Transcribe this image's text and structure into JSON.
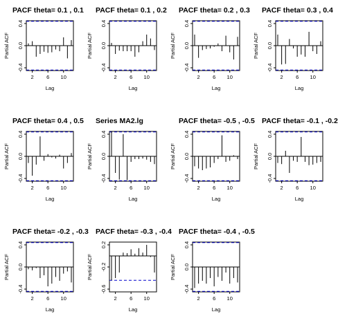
{
  "chart_data": [
    {
      "type": "bar",
      "title": "PACF theta= 0.1 , 0.1",
      "xlabel": "Lag",
      "ylabel": "Partial ACF",
      "xlim": [
        1,
        12
      ],
      "ylim": [
        -0.45,
        0.45
      ],
      "y_ticks": [
        -0.4,
        0.0,
        0.4
      ],
      "y_tick_labels": [
        "-0.4",
        "0.0",
        "0.4"
      ],
      "x_ticks": [
        2,
        6,
        10
      ],
      "x_tick_labels": [
        "2",
        "6",
        "10"
      ],
      "ci_bound": 0.44,
      "x": [
        1,
        2,
        3,
        4,
        5,
        6,
        7,
        8,
        9,
        10,
        11,
        12
      ],
      "values": [
        0.04,
        0.08,
        -0.2,
        -0.15,
        -0.11,
        -0.13,
        -0.12,
        -0.07,
        -0.1,
        0.15,
        -0.23,
        0.1
      ]
    },
    {
      "type": "bar",
      "title": "PACF theta= 0.1 , 0.2",
      "xlabel": "Lag",
      "ylabel": "Partial ACF",
      "xlim": [
        1,
        12
      ],
      "ylim": [
        -0.45,
        0.45
      ],
      "y_ticks": [
        -0.4,
        0.0,
        0.4
      ],
      "y_tick_labels": [
        "-0.4",
        "0.0",
        "0.4"
      ],
      "x_ticks": [
        2,
        6,
        10
      ],
      "x_tick_labels": [
        "2",
        "6",
        "10"
      ],
      "ci_bound": 0.44,
      "x": [
        1,
        2,
        3,
        4,
        5,
        6,
        7,
        8,
        9,
        10,
        11,
        12
      ],
      "values": [
        0.05,
        -0.15,
        -0.09,
        -0.1,
        -0.1,
        -0.1,
        -0.2,
        -0.12,
        0.08,
        0.2,
        0.13,
        -0.08
      ]
    },
    {
      "type": "bar",
      "title": "PACF theta= 0.2 , 0.3",
      "xlabel": "Lag",
      "ylabel": "Partial ACF",
      "xlim": [
        1,
        12
      ],
      "ylim": [
        -0.45,
        0.45
      ],
      "y_ticks": [
        -0.4,
        0.0,
        0.4
      ],
      "y_tick_labels": [
        "-0.4",
        "0.0",
        "0.4"
      ],
      "x_ticks": [
        2,
        6,
        10
      ],
      "x_tick_labels": [
        "2",
        "6",
        "10"
      ],
      "ci_bound": 0.44,
      "x": [
        1,
        2,
        3,
        4,
        5,
        6,
        7,
        8,
        9,
        10,
        11,
        12
      ],
      "values": [
        0.2,
        -0.22,
        -0.08,
        -0.06,
        -0.05,
        -0.02,
        0.04,
        -0.1,
        0.18,
        -0.12,
        -0.25,
        0.16
      ]
    },
    {
      "type": "bar",
      "title": "PACF theta= 0.3 , 0.4",
      "xlabel": "Lag",
      "ylabel": "Partial ACF",
      "xlim": [
        1,
        12
      ],
      "ylim": [
        -0.45,
        0.45
      ],
      "y_ticks": [
        -0.4,
        0.0,
        0.4
      ],
      "y_tick_labels": [
        "-0.4",
        "0.0",
        "0.4"
      ],
      "x_ticks": [
        2,
        6,
        10
      ],
      "x_tick_labels": [
        "2",
        "6",
        "10"
      ],
      "ci_bound": 0.44,
      "x": [
        1,
        2,
        3,
        4,
        5,
        6,
        7,
        8,
        9,
        10,
        11,
        12
      ],
      "values": [
        0.2,
        -0.34,
        -0.33,
        0.12,
        -0.05,
        -0.2,
        -0.16,
        -0.2,
        0.25,
        -0.1,
        -0.15,
        0.08
      ]
    },
    {
      "type": "bar",
      "title": "PACF theta= 0.4 , 0.5",
      "xlabel": "Lag",
      "ylabel": "Partial ACF",
      "xlim": [
        1,
        12
      ],
      "ylim": [
        -0.45,
        0.45
      ],
      "y_ticks": [
        -0.4,
        0.0,
        0.4
      ],
      "y_tick_labels": [
        "-0.4",
        "0.0",
        "0.4"
      ],
      "x_ticks": [
        2,
        6,
        10
      ],
      "x_tick_labels": [
        "2",
        "6",
        "10"
      ],
      "ci_bound": 0.44,
      "x": [
        1,
        2,
        3,
        4,
        5,
        6,
        7,
        8,
        9,
        10,
        11,
        12
      ],
      "values": [
        -0.12,
        -0.35,
        -0.15,
        0.36,
        -0.08,
        0.04,
        -0.02,
        -0.04,
        0.03,
        -0.22,
        -0.12,
        0.06
      ]
    },
    {
      "type": "bar",
      "title": "Series  MA2.lg",
      "xlabel": "Lag",
      "ylabel": "Partial ACF",
      "xlim": [
        1,
        12
      ],
      "ylim": [
        -0.45,
        0.45
      ],
      "y_ticks": [
        -0.4,
        0.0,
        0.4
      ],
      "y_tick_labels": [
        "-0.4",
        "0.0",
        "0.4"
      ],
      "x_ticks": [
        2,
        6,
        10
      ],
      "x_tick_labels": [
        "2",
        "6",
        "10"
      ],
      "ci_bound": 0.44,
      "x": [
        1,
        2,
        3,
        4,
        5,
        6,
        7,
        8,
        9,
        10,
        11,
        12
      ],
      "values": [
        0.46,
        -0.3,
        -0.42,
        0.4,
        -0.43,
        -0.1,
        -0.05,
        -0.05,
        -0.04,
        -0.06,
        -0.1,
        -0.14
      ]
    },
    {
      "type": "bar",
      "title": "PACF theta= -0.5 , -0.5",
      "xlabel": "Lag",
      "ylabel": "Partial ACF",
      "xlim": [
        1,
        12
      ],
      "ylim": [
        -0.45,
        0.45
      ],
      "y_ticks": [
        -0.4,
        0.0,
        0.4
      ],
      "y_tick_labels": [
        "-0.4",
        "0.0",
        "0.4"
      ],
      "x_ticks": [
        2,
        6,
        10
      ],
      "x_tick_labels": [
        "2",
        "6",
        "10"
      ],
      "ci_bound": 0.44,
      "x": [
        1,
        2,
        3,
        4,
        5,
        6,
        7,
        8,
        9,
        10,
        11,
        12
      ],
      "values": [
        -0.18,
        -0.22,
        -0.25,
        -0.22,
        -0.2,
        -0.12,
        -0.05,
        0.38,
        -0.1,
        -0.08,
        0.02,
        -0.05
      ]
    },
    {
      "type": "bar",
      "title": "PACF theta= -0.1 , -0.2",
      "xlabel": "Lag",
      "ylabel": "Partial ACF",
      "xlim": [
        1,
        12
      ],
      "ylim": [
        -0.45,
        0.45
      ],
      "y_ticks": [
        -0.4,
        0.0,
        0.4
      ],
      "y_tick_labels": [
        "-0.4",
        "0.0",
        "0.4"
      ],
      "x_ticks": [
        2,
        6,
        10
      ],
      "x_tick_labels": [
        "2",
        "6",
        "10"
      ],
      "ci_bound": 0.44,
      "x": [
        1,
        2,
        3,
        4,
        5,
        6,
        7,
        8,
        9,
        10,
        11,
        12
      ],
      "values": [
        -0.12,
        -0.14,
        0.1,
        -0.3,
        -0.08,
        -0.1,
        0.35,
        -0.1,
        -0.16,
        -0.15,
        -0.12,
        -0.1
      ]
    },
    {
      "type": "bar",
      "title": "PACF theta= -0.2 , -0.3",
      "xlabel": "Lag",
      "ylabel": "Partial ACF",
      "xlim": [
        1,
        12
      ],
      "ylim": [
        -0.45,
        0.45
      ],
      "y_ticks": [
        -0.4,
        0.0,
        0.4
      ],
      "y_tick_labels": [
        "-0.4",
        "0.0",
        "0.4"
      ],
      "x_ticks": [
        2,
        6,
        10
      ],
      "x_tick_labels": [
        "2",
        "6",
        "10"
      ],
      "ci_bound": 0.44,
      "x": [
        1,
        2,
        3,
        4,
        5,
        6,
        7,
        8,
        9,
        10,
        11,
        12
      ],
      "values": [
        -0.04,
        -0.06,
        -0.02,
        -0.2,
        -0.15,
        -0.35,
        -0.3,
        -0.18,
        -0.25,
        -0.12,
        -0.08,
        -0.28
      ]
    },
    {
      "type": "bar",
      "title": "PACF theta= -0.3 , -0.4",
      "xlabel": "Lag",
      "ylabel": "Partial ACF",
      "xlim": [
        1,
        12
      ],
      "ylim": [
        -0.65,
        0.25
      ],
      "y_ticks": [
        -0.6,
        -0.2,
        0.2
      ],
      "y_tick_labels": [
        "-0.6",
        "-0.2",
        "0.2"
      ],
      "x_ticks": [
        2,
        6,
        10
      ],
      "x_tick_labels": [
        "2",
        "6",
        "10"
      ],
      "ci_bound": 0.44,
      "x": [
        1,
        2,
        3,
        4,
        5,
        6,
        7,
        8,
        9,
        10,
        11,
        12
      ],
      "values": [
        -0.44,
        -0.4,
        -0.3,
        0.06,
        0.05,
        0.12,
        0.04,
        0.14,
        0.06,
        0.2,
        -0.02,
        -0.3
      ]
    },
    {
      "type": "bar",
      "title": "PACF theta= -0.4 , -0.5",
      "xlabel": "Lag",
      "ylabel": "Partial ACF",
      "xlim": [
        1,
        12
      ],
      "ylim": [
        -0.45,
        0.45
      ],
      "y_ticks": [
        -0.4,
        0.0,
        0.4
      ],
      "y_tick_labels": [
        "-0.4",
        "0.0",
        "0.4"
      ],
      "x_ticks": [
        2,
        6,
        10
      ],
      "x_tick_labels": [
        "2",
        "6",
        "10"
      ],
      "ci_bound": 0.44,
      "x": [
        1,
        2,
        3,
        4,
        5,
        6,
        7,
        8,
        9,
        10,
        11,
        12
      ],
      "values": [
        -0.38,
        -0.3,
        -0.25,
        -0.3,
        -0.2,
        -0.35,
        -0.18,
        -0.25,
        -0.1,
        -0.3,
        -0.2,
        -0.28
      ]
    }
  ],
  "colors": {
    "ci_line": "#0000cc",
    "bar": "#000000",
    "axis": "#000000"
  }
}
